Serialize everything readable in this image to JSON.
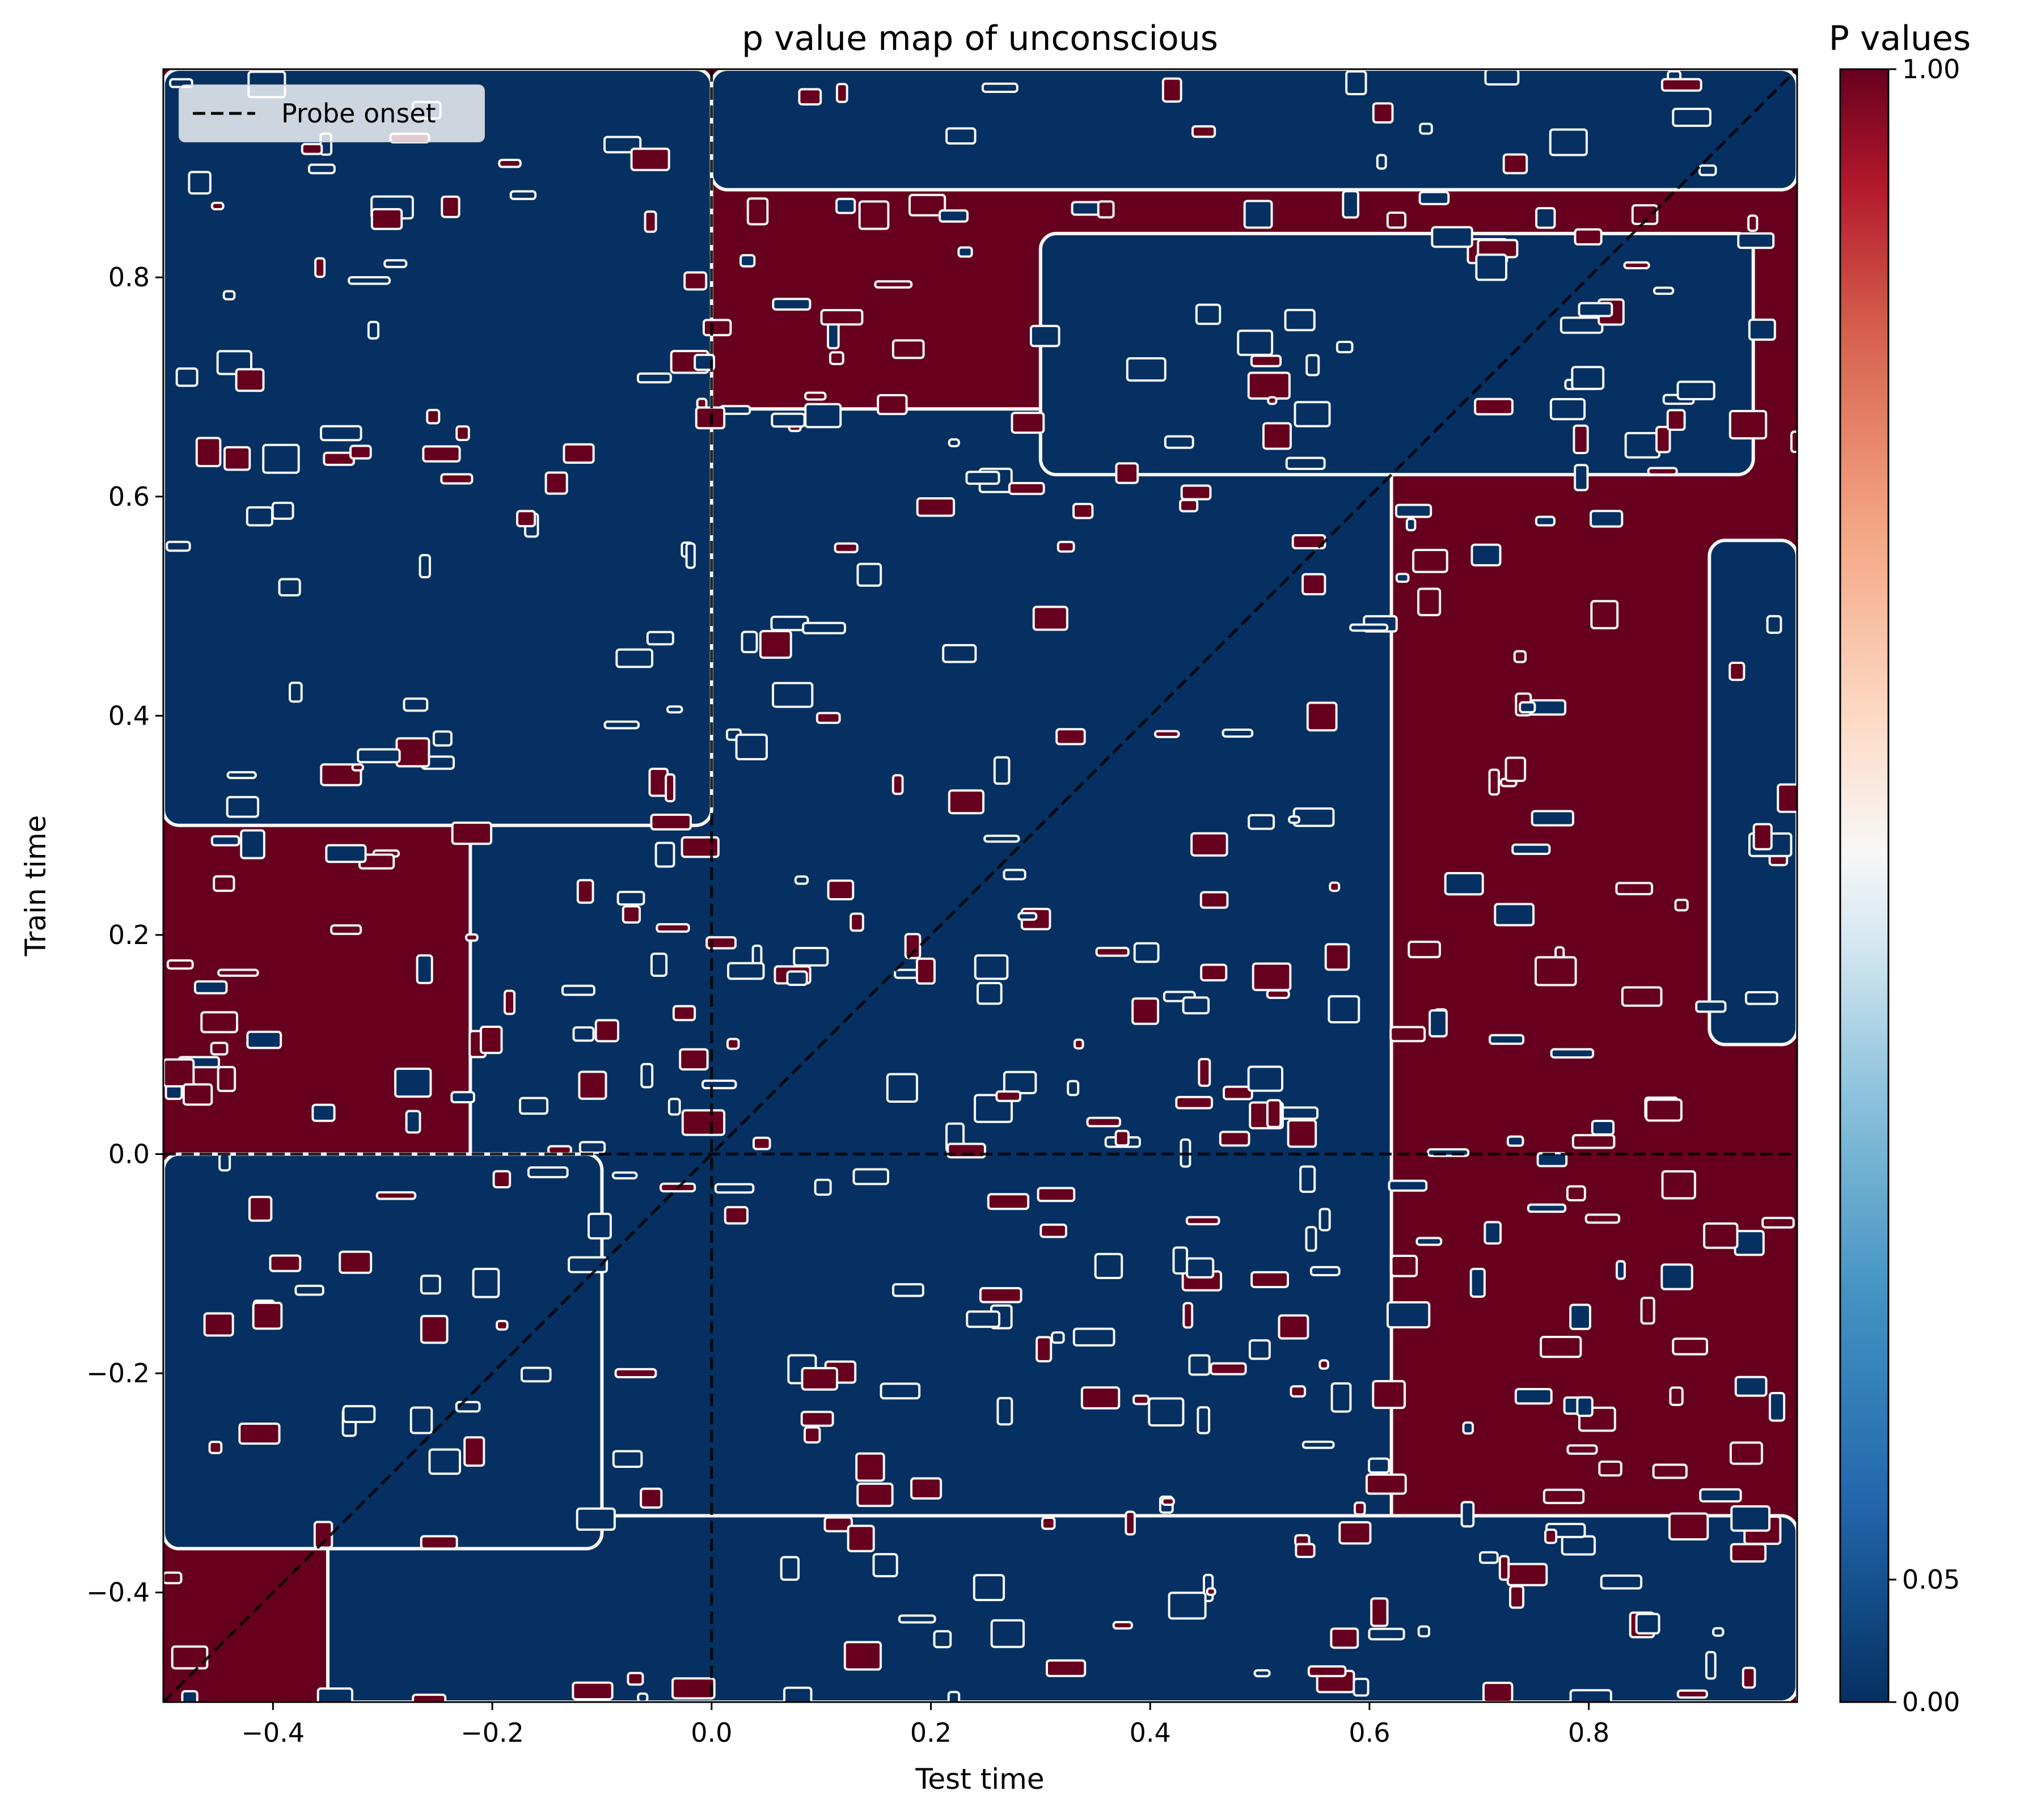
{
  "chart_data": {
    "type": "heatmap",
    "title": "p value map of unconscious",
    "xlabel": "Test time",
    "ylabel": "Train time",
    "xlim": [
      -0.5,
      0.99
    ],
    "ylim": [
      -0.5,
      0.99
    ],
    "x_ticks": [
      -0.4,
      -0.2,
      0.0,
      0.2,
      0.4,
      0.6,
      0.8
    ],
    "x_tick_labels": [
      "−0.4",
      "−0.2",
      "0.0",
      "0.2",
      "0.4",
      "0.6",
      "0.8"
    ],
    "y_ticks": [
      -0.4,
      -0.2,
      0.0,
      0.2,
      0.4,
      0.6,
      0.8
    ],
    "y_tick_labels": [
      "−0.4",
      "−0.2",
      "0.0",
      "0.2",
      "0.4",
      "0.6",
      "0.8"
    ],
    "colorbar": {
      "title": "P values",
      "colormap": "RdBu_r",
      "range": [
        0.0,
        1.0
      ],
      "tick_values": [
        0.0,
        0.05,
        1.0
      ],
      "tick_labels": [
        "0.00",
        "0.05",
        "1.00"
      ],
      "scale": "nonlinear (0.05 placed near bottom)",
      "stops": [
        "#053061",
        "#2166ac",
        "#4393c3",
        "#92c5de",
        "#d1e5f0",
        "#f7f7f7",
        "#fddbc7",
        "#f4a582",
        "#d6604d",
        "#b2182b",
        "#67001f"
      ]
    },
    "colors": {
      "significant": "#053061",
      "nonsignificant": "#67001f",
      "contour": "#f7f7f7"
    },
    "legend": {
      "location": "upper left",
      "entries": [
        {
          "label": "Probe onset",
          "style": "dashed",
          "color": "#000000"
        }
      ]
    },
    "reference_lines": [
      {
        "kind": "vertical",
        "x": 0.0,
        "style": "dashed"
      },
      {
        "kind": "horizontal",
        "y": 0.0,
        "style": "dashed"
      },
      {
        "kind": "diagonal",
        "from": [
          -0.5,
          -0.5
        ],
        "to": [
          0.99,
          0.99
        ],
        "style": "dashed"
      }
    ],
    "significant_regions": [
      {
        "name": "central",
        "x": [
          -0.22,
          0.62
        ],
        "y": [
          -0.36,
          0.68
        ]
      },
      {
        "name": "upper-left",
        "x": [
          -0.5,
          0.0
        ],
        "y": [
          0.3,
          0.99
        ]
      },
      {
        "name": "top-band",
        "x": [
          0.0,
          0.99
        ],
        "y": [
          0.88,
          0.99
        ]
      },
      {
        "name": "upper-right",
        "x": [
          0.3,
          0.95
        ],
        "y": [
          0.62,
          0.84
        ]
      },
      {
        "name": "bottom-band",
        "x": [
          -0.35,
          0.99
        ],
        "y": [
          -0.5,
          -0.33
        ]
      },
      {
        "name": "lower-left",
        "x": [
          -0.5,
          -0.1
        ],
        "y": [
          -0.36,
          0.0
        ]
      },
      {
        "name": "right-edge",
        "x": [
          0.91,
          0.99
        ],
        "y": [
          0.1,
          0.56
        ]
      }
    ]
  }
}
